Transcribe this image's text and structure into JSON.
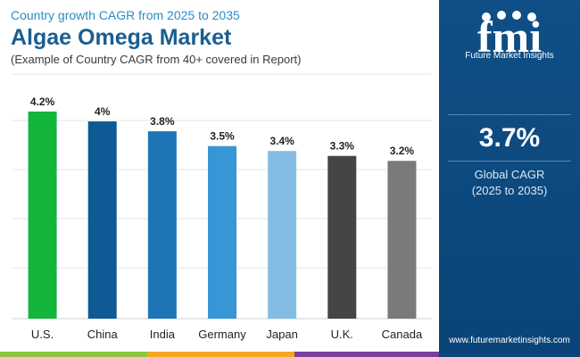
{
  "header": {
    "subtitle": "Country growth CAGR from 2025 to 2035",
    "title": "Algae Omega Market",
    "note": "(Example of Country CAGR from 40+ covered in Report)"
  },
  "chart_data": {
    "type": "bar",
    "categories": [
      "U.S.",
      "China",
      "India",
      "Germany",
      "Japan",
      "U.K.",
      "Canada"
    ],
    "values": [
      4.2,
      4.0,
      3.8,
      3.5,
      3.4,
      3.3,
      3.2
    ],
    "data_labels": [
      "4.2%",
      "4%",
      "3.8%",
      "3.5%",
      "3.4%",
      "3.3%",
      "3.2%"
    ],
    "colors": [
      "#13b53a",
      "#0d5a94",
      "#1e75b5",
      "#3696d6",
      "#84bde3",
      "#454545",
      "#7a7a7a"
    ],
    "ylim": [
      0,
      4.2
    ],
    "grid": true,
    "xlabel": "",
    "ylabel": ""
  },
  "sidebar": {
    "brand_name": "Future Market Insights",
    "logo_text": "fmi",
    "highlight_value": "3.7%",
    "highlight_label": "Global CAGR",
    "highlight_period": "(2025 to 2035)",
    "website": "www.futuremarketinsights.com",
    "color": "#0f4f86"
  },
  "footer": {
    "stripe_colors": [
      "#8cc63f",
      "#f5a623",
      "#7a3e9d"
    ]
  }
}
